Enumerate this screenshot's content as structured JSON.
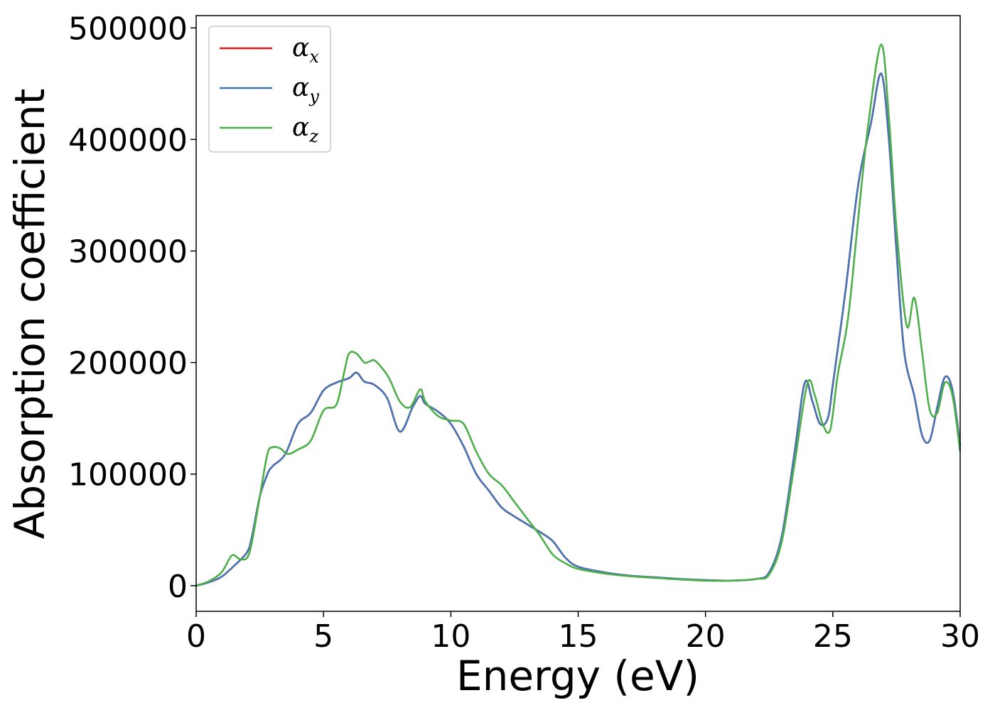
{
  "chart_data": {
    "type": "line",
    "xlabel": "Energy (eV)",
    "ylabel": "Absorption coefficient",
    "xlim": [
      0,
      30
    ],
    "ylim": [
      -23000,
      511000
    ],
    "xticks": [
      0,
      5,
      10,
      15,
      20,
      25,
      30
    ],
    "xtick_labels": [
      "0",
      "5",
      "10",
      "15",
      "20",
      "25",
      "30"
    ],
    "yticks": [
      0,
      100000,
      200000,
      300000,
      400000,
      500000
    ],
    "ytick_labels": [
      "0",
      "100000",
      "200000",
      "300000",
      "400000",
      "500000"
    ],
    "grid": false,
    "legend_position": "top-left",
    "series": [
      {
        "name": "α_x",
        "label_main": "α",
        "label_sub": "x",
        "color": "#e41a1c",
        "x": [
          0,
          0.5,
          1,
          1.5,
          2,
          2.2,
          2.5,
          2.8,
          3,
          3.5,
          4,
          4.5,
          5,
          5.5,
          6,
          6.3,
          6.6,
          7,
          7.5,
          8,
          8.5,
          8.8,
          9,
          9.5,
          10,
          10.5,
          11,
          11.5,
          12,
          12.5,
          13,
          13.5,
          14,
          14.5,
          15,
          16,
          17,
          18,
          19,
          20,
          21,
          22,
          22.5,
          23,
          23.5,
          23.9,
          24.2,
          24.5,
          24.8,
          25,
          25.5,
          26,
          26.5,
          26.9,
          27.2,
          27.5,
          27.8,
          28.2,
          28.5,
          28.8,
          29.1,
          29.4,
          29.7,
          30
        ],
        "y": [
          0,
          3000,
          8000,
          18000,
          30000,
          45000,
          80000,
          100000,
          107000,
          118000,
          145000,
          155000,
          175000,
          182000,
          186000,
          191000,
          183000,
          180000,
          168000,
          138000,
          160000,
          170000,
          163000,
          156000,
          145000,
          125000,
          100000,
          85000,
          70000,
          62000,
          55000,
          48000,
          40000,
          25000,
          17000,
          12000,
          9000,
          7500,
          6000,
          5000,
          4500,
          6000,
          12000,
          45000,
          120000,
          182000,
          165000,
          145000,
          150000,
          180000,
          265000,
          360000,
          415000,
          459000,
          400000,
          300000,
          210000,
          170000,
          135000,
          130000,
          160000,
          187000,
          175000,
          125000
        ]
      },
      {
        "name": "α_y",
        "label_main": "α",
        "label_sub": "y",
        "color": "#4575b4",
        "x": [
          0,
          0.5,
          1,
          1.5,
          2,
          2.2,
          2.5,
          2.8,
          3,
          3.5,
          4,
          4.5,
          5,
          5.5,
          6,
          6.3,
          6.6,
          7,
          7.5,
          8,
          8.5,
          8.8,
          9,
          9.5,
          10,
          10.5,
          11,
          11.5,
          12,
          12.5,
          13,
          13.5,
          14,
          14.5,
          15,
          16,
          17,
          18,
          19,
          20,
          21,
          22,
          22.5,
          23,
          23.5,
          23.9,
          24.2,
          24.5,
          24.8,
          25,
          25.5,
          26,
          26.5,
          26.9,
          27.2,
          27.5,
          27.8,
          28.2,
          28.5,
          28.8,
          29.1,
          29.4,
          29.7,
          30
        ],
        "y": [
          0,
          3000,
          8000,
          18000,
          30000,
          45000,
          80000,
          100000,
          107000,
          118000,
          145000,
          155000,
          175000,
          182000,
          186000,
          191000,
          183000,
          180000,
          168000,
          138000,
          160000,
          170000,
          163000,
          156000,
          145000,
          125000,
          100000,
          85000,
          70000,
          62000,
          55000,
          48000,
          40000,
          25000,
          17000,
          12000,
          9000,
          7500,
          6000,
          5000,
          4500,
          6000,
          12000,
          45000,
          120000,
          182000,
          165000,
          145000,
          150000,
          180000,
          265000,
          360000,
          415000,
          459000,
          400000,
          300000,
          210000,
          170000,
          135000,
          130000,
          160000,
          187000,
          175000,
          125000
        ]
      },
      {
        "name": "α_z",
        "label_main": "α",
        "label_sub": "z",
        "color": "#4daf4a",
        "x": [
          0,
          0.5,
          1,
          1.4,
          1.7,
          2,
          2.2,
          2.5,
          2.8,
          3,
          3.3,
          3.6,
          4,
          4.5,
          5,
          5.5,
          5.8,
          6,
          6.3,
          6.6,
          6.8,
          7,
          7.3,
          7.6,
          8,
          8.4,
          8.8,
          9,
          9.5,
          10,
          10.5,
          11,
          11.5,
          12,
          12.5,
          13,
          13.5,
          14,
          14.5,
          15,
          16,
          17,
          18,
          19,
          20,
          21,
          22,
          22.5,
          23,
          23.5,
          24,
          24.3,
          24.6,
          24.9,
          25.2,
          25.6,
          26,
          26.4,
          26.9,
          27.2,
          27.5,
          27.9,
          28.2,
          28.5,
          28.8,
          29.1,
          29.4,
          29.7,
          30
        ],
        "y": [
          0,
          4000,
          12000,
          27000,
          24000,
          25000,
          40000,
          80000,
          118000,
          124000,
          123000,
          118000,
          122000,
          130000,
          157000,
          162000,
          190000,
          208000,
          208000,
          200000,
          201000,
          202000,
          195000,
          185000,
          165000,
          160000,
          176000,
          165000,
          152000,
          148000,
          145000,
          120000,
          100000,
          90000,
          75000,
          60000,
          45000,
          28000,
          20000,
          15000,
          11000,
          8500,
          7000,
          5500,
          4500,
          4500,
          6000,
          10000,
          40000,
          110000,
          181000,
          170000,
          145000,
          140000,
          190000,
          240000,
          330000,
          415000,
          485000,
          420000,
          320000,
          233000,
          258000,
          210000,
          158000,
          155000,
          182000,
          170000,
          120000
        ]
      }
    ]
  }
}
